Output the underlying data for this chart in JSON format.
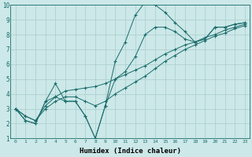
{
  "xlabel": "Humidex (Indice chaleur)",
  "bg_color": "#cce8e8",
  "grid_color": "#aacccc",
  "line_color": "#1a6b6b",
  "xlim": [
    -0.5,
    23.5
  ],
  "ylim": [
    1,
    10
  ],
  "xticks": [
    0,
    1,
    2,
    3,
    4,
    5,
    6,
    7,
    8,
    9,
    10,
    11,
    12,
    13,
    14,
    15,
    16,
    17,
    18,
    19,
    20,
    21,
    22,
    23
  ],
  "yticks": [
    1,
    2,
    3,
    4,
    5,
    6,
    7,
    8,
    9,
    10
  ],
  "series": [
    [
      3.0,
      2.2,
      2.0,
      3.5,
      4.7,
      3.5,
      3.5,
      2.5,
      1.0,
      3.2,
      6.2,
      7.5,
      9.3,
      10.2,
      10.0,
      9.5,
      8.8,
      8.2,
      7.5,
      7.7,
      8.5,
      8.5,
      8.7,
      8.8
    ],
    [
      3.0,
      2.2,
      2.0,
      3.5,
      3.8,
      3.5,
      3.5,
      2.5,
      1.0,
      3.2,
      5.0,
      5.5,
      6.5,
      8.0,
      8.5,
      8.5,
      8.2,
      7.7,
      7.5,
      7.7,
      8.5,
      8.5,
      8.7,
      8.8
    ],
    [
      3.0,
      2.5,
      2.2,
      3.0,
      3.5,
      3.8,
      3.8,
      3.5,
      3.2,
      3.5,
      4.0,
      4.4,
      4.8,
      5.2,
      5.7,
      6.2,
      6.6,
      7.0,
      7.3,
      7.6,
      7.9,
      8.1,
      8.4,
      8.6
    ],
    [
      3.0,
      2.5,
      2.2,
      3.2,
      3.8,
      4.2,
      4.3,
      4.4,
      4.5,
      4.7,
      5.0,
      5.3,
      5.6,
      5.9,
      6.3,
      6.7,
      7.0,
      7.3,
      7.5,
      7.8,
      8.0,
      8.3,
      8.5,
      8.7
    ]
  ]
}
